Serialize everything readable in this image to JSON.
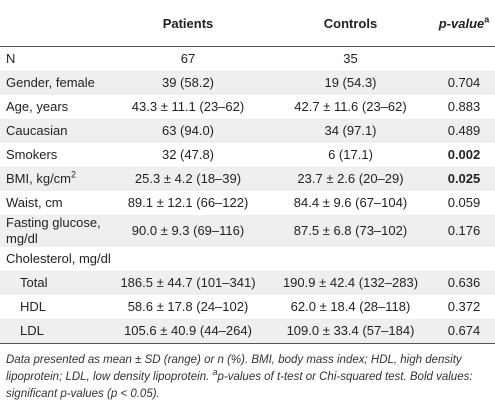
{
  "table": {
    "header": {
      "patients": "Patients",
      "controls": "Controls",
      "p_value": "p-value",
      "p_value_sup": "a"
    },
    "rows": [
      {
        "label": "N",
        "patients": "67",
        "controls": "35"
      },
      {
        "label": "Gender, female",
        "patients": "39 (58.2)",
        "controls": "19 (54.3)",
        "p": "0.704"
      },
      {
        "label": "Age, years",
        "patients": "43.3 ± 11.1 (23–62)",
        "controls": "42.7 ± 11.6 (23–62)",
        "p": "0.883"
      },
      {
        "label": "Caucasian",
        "patients": "63 (94.0)",
        "controls": "34 (97.1)",
        "p": "0.489"
      },
      {
        "label": "Smokers",
        "patients": "32 (47.8)",
        "controls": "6 (17.1)",
        "p": "0.002",
        "bold": true
      },
      {
        "label": "BMI, kg/cm",
        "label_sup": "2",
        "patients": "25.3 ± 4.2 (18–39)",
        "controls": "23.7 ± 2.6 (20–29)",
        "p": "0.025",
        "bold": true
      },
      {
        "label": "Waist, cm",
        "patients": "89.1 ± 12.1 (66–122)",
        "controls": "84.4 ± 9.6 (67–104)",
        "p": "0.059"
      },
      {
        "label": "Fasting glucose, mg/dl",
        "patients": "90.0 ± 9.3 (69–116)",
        "controls": "87.5 ± 6.8 (73–102)",
        "p": "0.176"
      },
      {
        "label": "Cholesterol, mg/dl"
      },
      {
        "label": "Total",
        "indent": true,
        "patients": "186.5 ± 44.7 (101–341)",
        "controls": "190.9 ± 42.4 (132–283)",
        "p": "0.636"
      },
      {
        "label": "HDL",
        "indent": true,
        "patients": "58.6 ± 17.8 (24–102)",
        "controls": "62.0 ± 18.4 (28–118)",
        "p": "0.372"
      },
      {
        "label": "LDL",
        "indent": true,
        "patients": "105.6 ± 40.9 (44–264)",
        "controls": "109.0 ± 33.4 (57–184)",
        "p": "0.674"
      }
    ],
    "footnote": {
      "text": "Data presented as mean ± SD (range) or n (%). BMI, body mass index; HDL, high density lipoprotein; LDL, low density lipoprotein. ",
      "sup": "a",
      "text2": "p-values of t-test or Chi-squared test. Bold values: significant p-values (p < 0.05)."
    }
  }
}
